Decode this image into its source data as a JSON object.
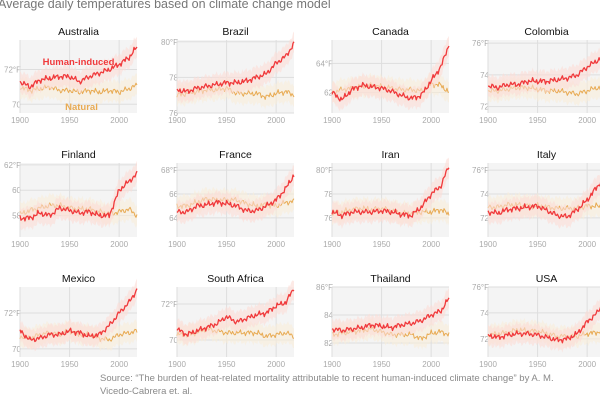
{
  "title": "Average daily temperatures based on climate change model",
  "source_line1": "Source: “The burden of heat-related mortality attributable to recent human-induced climate change” by A. M.",
  "source_line2": "Vicedo-Cabrera et. al.",
  "colors": {
    "human": "#f0393b",
    "natural": "#e8aa52",
    "band_human": "#fbdcd6",
    "band_natural": "#f8ecd8",
    "plot_bg": "#f4f4f4",
    "grid": "#dedede",
    "tick": "#aaaaaa"
  },
  "chart_data": {
    "type": "line",
    "title": "Average daily temperatures based on climate change model",
    "xlabel": "",
    "ylabel": "Temperature (°F)",
    "x": [
      1900,
      1910,
      1920,
      1930,
      1940,
      1950,
      1960,
      1970,
      1980,
      1990,
      2000,
      2010,
      2018
    ],
    "xticks": [
      1900,
      1950,
      2000
    ],
    "xlim": [
      1900,
      2018
    ],
    "legend": {
      "human_label": "Human-induced",
      "natural_label": "Natural",
      "placement": "inside first panel"
    },
    "panels": [
      {
        "name": "Australia",
        "yticks": [
          70,
          72
        ],
        "ytick_labels": [
          "70",
          "72°F"
        ],
        "ylim": [
          69.5,
          73.7
        ],
        "human": [
          71.3,
          71.0,
          71.4,
          71.5,
          71.6,
          71.6,
          71.3,
          71.6,
          71.8,
          72.0,
          72.3,
          72.7,
          73.3
        ],
        "natural": [
          71.0,
          70.8,
          70.9,
          71.0,
          70.8,
          70.8,
          70.7,
          70.8,
          70.7,
          70.8,
          70.7,
          70.9,
          71.1
        ]
      },
      {
        "name": "Brazil",
        "yticks": [
          76,
          78,
          80
        ],
        "ytick_labels": [
          "76",
          "78",
          "80°F"
        ],
        "ylim": [
          76,
          80.1
        ],
        "human": [
          77.3,
          77.2,
          77.4,
          77.5,
          77.6,
          77.7,
          77.7,
          77.8,
          78.0,
          78.2,
          78.8,
          79.2,
          79.9
        ],
        "natural": [
          77.0,
          77.1,
          77.2,
          77.3,
          77.3,
          77.4,
          77.1,
          77.1,
          77.1,
          76.9,
          77.1,
          77.2,
          77.0
        ]
      },
      {
        "name": "Canada",
        "yticks": [
          62,
          64
        ],
        "ytick_labels": [
          "62",
          "64°F"
        ],
        "ylim": [
          60.6,
          65.6
        ],
        "human": [
          62.0,
          61.5,
          62.2,
          62.5,
          62.4,
          62.3,
          62.1,
          61.8,
          61.6,
          61.8,
          62.8,
          63.8,
          65.3
        ],
        "natural": [
          62.0,
          62.2,
          62.3,
          62.4,
          62.5,
          62.4,
          62.3,
          62.2,
          62.2,
          62.1,
          62.6,
          62.5,
          62.0
        ]
      },
      {
        "name": "Colombia",
        "yticks": [
          72,
          74,
          76
        ],
        "ytick_labels": [
          "72",
          "74",
          "76°F"
        ],
        "ylim": [
          71.6,
          76.2
        ],
        "human": [
          73.3,
          73.2,
          73.4,
          73.4,
          73.6,
          73.6,
          73.6,
          73.7,
          73.8,
          74.0,
          74.5,
          74.9,
          75.2
        ],
        "natural": [
          73.0,
          73.0,
          73.1,
          73.2,
          73.2,
          73.1,
          73.0,
          73.0,
          72.9,
          72.8,
          73.0,
          73.2,
          73.1
        ]
      },
      {
        "name": "Finland",
        "yticks": [
          58,
          60,
          62
        ],
        "ytick_labels": [
          "58",
          "60",
          "62°F"
        ],
        "ylim": [
          56.3,
          62.15
        ],
        "human": [
          57.8,
          57.8,
          58.2,
          58.0,
          58.6,
          58.4,
          58.2,
          58.3,
          58.0,
          58.0,
          60.0,
          60.7,
          61.3
        ],
        "natural": [
          58.1,
          58.4,
          58.6,
          58.8,
          58.8,
          58.6,
          58.5,
          58.5,
          58.3,
          58.1,
          58.3,
          58.5,
          58.0
        ]
      },
      {
        "name": "France",
        "yticks": [
          64,
          66,
          68
        ],
        "ytick_labels": [
          "64",
          "66",
          "68°F"
        ],
        "ylim": [
          62.4,
          68.6
        ],
        "human": [
          64.5,
          64.5,
          65.0,
          65.1,
          65.3,
          65.2,
          65.0,
          64.6,
          64.6,
          65.0,
          65.5,
          66.5,
          67.6
        ],
        "natural": [
          65.0,
          65.0,
          65.3,
          65.6,
          65.5,
          65.5,
          65.5,
          65.2,
          65.0,
          65.1,
          65.0,
          65.3,
          65.4
        ]
      },
      {
        "name": "Iran",
        "yticks": [
          76,
          78,
          80
        ],
        "ytick_labels": [
          "76",
          "78",
          "80°F"
        ],
        "ylim": [
          74.4,
          80.6
        ],
        "human": [
          76.5,
          76.2,
          76.5,
          76.5,
          76.5,
          76.6,
          76.5,
          76.3,
          76.2,
          76.9,
          78.0,
          78.7,
          80.4
        ],
        "natural": [
          76.4,
          76.5,
          76.7,
          76.8,
          76.7,
          76.8,
          76.6,
          76.4,
          76.4,
          76.5,
          76.5,
          76.7,
          76.3
        ]
      },
      {
        "name": "Italy",
        "yticks": [
          72,
          74,
          76
        ],
        "ytick_labels": [
          "72",
          "74",
          "76°F"
        ],
        "ylim": [
          70.4,
          76.6
        ],
        "human": [
          72.5,
          72.4,
          72.7,
          72.8,
          72.9,
          73.0,
          72.6,
          72.2,
          72.1,
          72.7,
          73.5,
          74.6,
          75.5
        ],
        "natural": [
          72.9,
          72.9,
          73.1,
          73.1,
          73.0,
          73.0,
          72.9,
          72.8,
          72.8,
          72.8,
          73.0,
          73.0,
          72.7
        ]
      },
      {
        "name": "Mexico",
        "yticks": [
          70,
          72
        ],
        "ytick_labels": [
          "70",
          "72°F"
        ],
        "ylim": [
          69.55,
          73.45
        ],
        "human": [
          71.0,
          70.5,
          70.6,
          70.8,
          70.8,
          71.0,
          70.9,
          70.7,
          70.8,
          71.3,
          72.0,
          72.6,
          73.3
        ],
        "natural": [
          70.7,
          70.6,
          70.8,
          70.9,
          70.8,
          71.0,
          70.8,
          70.8,
          70.6,
          70.5,
          70.8,
          70.9,
          71.0
        ]
      },
      {
        "name": "South Africa",
        "yticks": [
          70,
          72
        ],
        "ytick_labels": [
          "70",
          "72°F"
        ],
        "ylim": [
          69.05,
          72.95
        ],
        "human": [
          70.6,
          70.3,
          70.5,
          70.7,
          70.9,
          71.3,
          71.0,
          71.2,
          71.4,
          71.5,
          71.9,
          72.1,
          72.9
        ],
        "natural": [
          70.3,
          70.3,
          70.4,
          70.6,
          70.5,
          70.4,
          70.4,
          70.4,
          70.4,
          70.2,
          70.3,
          70.4,
          70.2
        ]
      },
      {
        "name": "Thailand",
        "yticks": [
          82,
          84,
          86
        ],
        "ytick_labels": [
          "82",
          "84",
          "86°F"
        ],
        "ylim": [
          81,
          86
        ],
        "human": [
          83.0,
          82.9,
          83.0,
          83.1,
          83.3,
          83.2,
          83.1,
          83.3,
          83.4,
          83.6,
          84.0,
          84.3,
          85.2
        ],
        "natural": [
          82.6,
          82.7,
          82.8,
          82.9,
          83.0,
          82.8,
          82.6,
          82.6,
          82.6,
          82.3,
          82.7,
          82.8,
          82.6
        ]
      },
      {
        "name": "USA",
        "yticks": [
          72,
          74,
          76
        ],
        "ytick_labels": [
          "72",
          "74",
          "76°F"
        ],
        "ylim": [
          70.6,
          76
        ],
        "human": [
          72.3,
          72.1,
          72.3,
          72.4,
          72.4,
          72.3,
          72.1,
          71.9,
          72.0,
          72.4,
          73.3,
          74.0,
          75.0
        ],
        "natural": [
          72.3,
          72.4,
          72.5,
          72.7,
          72.6,
          72.6,
          72.4,
          72.2,
          72.2,
          72.2,
          72.4,
          72.5,
          72.7
        ]
      }
    ]
  }
}
